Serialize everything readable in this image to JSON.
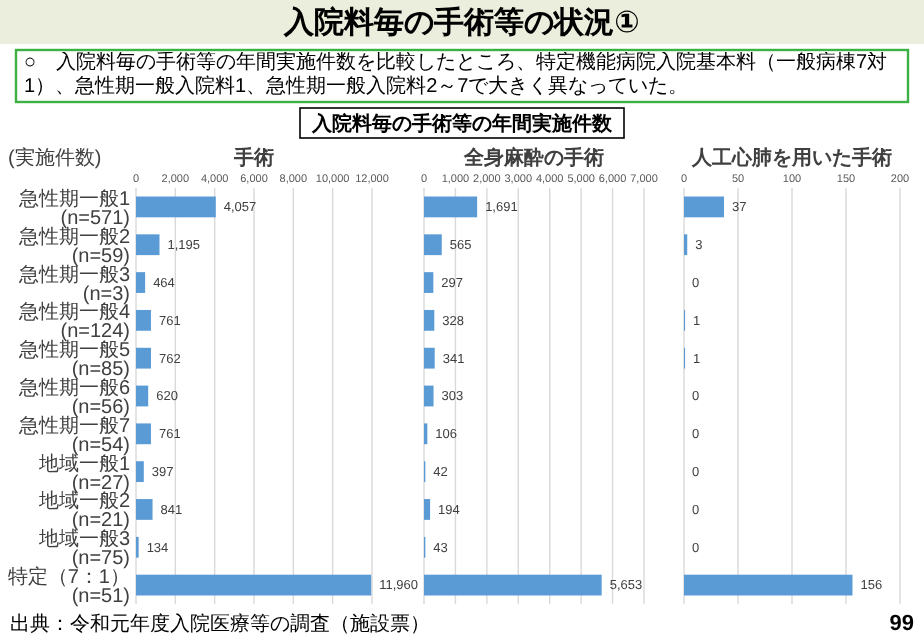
{
  "chart_data": [
    {
      "type": "bar",
      "orientation": "horizontal",
      "title": "手術",
      "ylabel": "(実施件数)",
      "annotations": [
        "入院料毎の手術等の状況①",
        "○　入院料毎の手術等の年間実施件数を比較したところ、特定機能病院入院基本料（一般病棟7対1）、急性期一般入院料1、急性期一般入院料2～7で大きく異なっていた。",
        "入院料毎の手術等の年間実施件数",
        "出典：令和元年度入院医療等の調査（施設票）",
        "99"
      ],
      "categories": [
        "急性期一般1 (n=571)",
        "急性期一般2 (n=59)",
        "急性期一般3 (n=3)",
        "急性期一般4 (n=124)",
        "急性期一般5 (n=85)",
        "急性期一般6 (n=56)",
        "急性期一般7 (n=54)",
        "地域一般1 (n=27)",
        "地域一般2 (n=21)",
        "地域一般3 (n=75)",
        "特定（7：1） (n=51)"
      ],
      "values": [
        4057,
        1195,
        464,
        761,
        762,
        620,
        761,
        397,
        841,
        134,
        11960
      ],
      "value_labels": [
        "4,057",
        "1,195",
        "464",
        "761",
        "762",
        "620",
        "761",
        "397",
        "841",
        "134",
        "11,960"
      ],
      "color": "#5b9bd5",
      "xlim": [
        0,
        12000
      ],
      "xticks": [
        0,
        {
          "value": 2000,
          "label": "2,000"
        },
        {
          "value": 4000,
          "label": "4,000"
        },
        {
          "value": 6000,
          "label": "6,000"
        },
        {
          "value": 8000,
          "label": "8,000"
        },
        {
          "value": 10000,
          "label": "10,000"
        },
        {
          "value": 12000,
          "label": "12,000"
        }
      ],
      "grid": "x"
    },
    {
      "type": "bar",
      "orientation": "horizontal",
      "title": "全身麻酔の手術",
      "tick_labels": "x",
      "categories": [
        null,
        null,
        null,
        null,
        null,
        null,
        null,
        null,
        null,
        null,
        null
      ],
      "values": [
        1691,
        565,
        297,
        328,
        341,
        303,
        106,
        42,
        194,
        43,
        5653
      ],
      "value_labels": [
        "1,691",
        "565",
        "297",
        "328",
        "341",
        "303",
        "106",
        "42",
        "194",
        "43",
        "5,653"
      ],
      "color": "#5b9bd5",
      "xlim": [
        0,
        7000
      ],
      "xticks": [
        0,
        {
          "value": 1000,
          "label": "1,000"
        },
        {
          "value": 2000,
          "label": "2,000"
        },
        {
          "value": 3000,
          "label": "3,000"
        },
        {
          "value": 4000,
          "label": "4,000"
        },
        {
          "value": 5000,
          "label": "5,000"
        },
        {
          "value": 6000,
          "label": "6,000"
        },
        {
          "value": 7000,
          "label": "7,000"
        }
      ],
      "grid": "x"
    },
    {
      "type": "bar",
      "orientation": "horizontal",
      "title": "人工心肺を用いた手術",
      "tick_labels": "x",
      "categories": [
        null,
        null,
        null,
        null,
        null,
        null,
        null,
        null,
        null,
        null,
        null
      ],
      "values": [
        37,
        3,
        0,
        1,
        1,
        0,
        0,
        0,
        0,
        0,
        156
      ],
      "data_labels": true,
      "color": "#5b9bd5",
      "xlim": [
        0,
        200
      ],
      "xticks": [
        0,
        50,
        100,
        150,
        200
      ],
      "grid": "x"
    }
  ]
}
